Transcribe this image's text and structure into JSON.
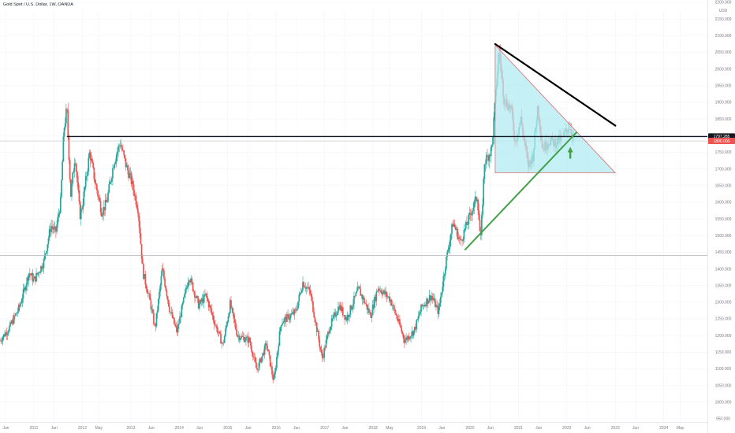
{
  "header": {
    "title": "Gold Spot / U.S. Dollar, 1W, OANDA"
  },
  "axis": {
    "currency": "USD",
    "y_ticks": [
      "2200.000",
      "2150.000",
      "2100.000",
      "2050.000",
      "2000.000",
      "1950.000",
      "1900.000",
      "1850.000",
      "1800.000",
      "1750.000",
      "1700.000",
      "1650.000",
      "1600.000",
      "1550.000",
      "1500.000",
      "1450.000",
      "1400.000",
      "1350.000",
      "1300.000",
      "1250.000",
      "1200.000",
      "1150.000",
      "1100.000",
      "1050.000",
      "1000.000",
      "950.000"
    ],
    "x_ticks": [
      {
        "label": "Jun",
        "t": 2010.42
      },
      {
        "label": "2011",
        "t": 2011.0
      },
      {
        "label": "Jun",
        "t": 2011.42
      },
      {
        "label": "2012",
        "t": 2012.0
      },
      {
        "label": "May",
        "t": 2012.34
      },
      {
        "label": "2013",
        "t": 2013.0
      },
      {
        "label": "Jun",
        "t": 2013.42
      },
      {
        "label": "2014",
        "t": 2014.0
      },
      {
        "label": "Jun",
        "t": 2014.42
      },
      {
        "label": "2015",
        "t": 2015.0
      },
      {
        "label": "Jun",
        "t": 2015.42
      },
      {
        "label": "2016",
        "t": 2016.0
      },
      {
        "label": "Jun",
        "t": 2016.42
      },
      {
        "label": "2017",
        "t": 2017.0
      },
      {
        "label": "Jun",
        "t": 2017.42
      },
      {
        "label": "2018",
        "t": 2018.0
      },
      {
        "label": "May",
        "t": 2018.34
      },
      {
        "label": "2019",
        "t": 2019.0
      },
      {
        "label": "Jun",
        "t": 2019.42
      },
      {
        "label": "2020",
        "t": 2020.0
      },
      {
        "label": "Jun",
        "t": 2020.42
      },
      {
        "label": "2021",
        "t": 2021.0
      },
      {
        "label": "Jun",
        "t": 2021.42
      },
      {
        "label": "2022",
        "t": 2022.0
      },
      {
        "label": "Jun",
        "t": 2022.42
      },
      {
        "label": "2023",
        "t": 2023.0
      },
      {
        "label": "Jun",
        "t": 2023.42
      },
      {
        "label": "2024",
        "t": 2024.0
      },
      {
        "label": "May",
        "t": 2024.34
      }
    ]
  },
  "price_tags": [
    {
      "label": "1797.285",
      "price": 1797.285,
      "bg": "#131722",
      "fg": "#ffffff"
    },
    {
      "label": "1800.000",
      "price": 1784.0,
      "bg": "#ef5350",
      "fg": "#ffffff"
    }
  ],
  "colors": {
    "up": "#26a69a",
    "down": "#ef5350",
    "grid": "#f0f3fa",
    "resistance": "#131722",
    "triangle_fill": "#b2ebf2",
    "triangle_edge": "#ef5350",
    "upper_trend": "#000000",
    "rising_trend": "#43a047",
    "arrow": "#43a047",
    "level": "#b0b4bc"
  },
  "drawings": {
    "resistance_price": 1797.285,
    "resistance_start_t": 2011.68,
    "support_level_price": 1440,
    "triangle": [
      {
        "t": 2020.52,
        "price": 2072
      },
      {
        "t": 2020.52,
        "price": 1688
      },
      {
        "t": 2023.0,
        "price": 1688
      }
    ],
    "upper_trendline": [
      {
        "t": 2020.52,
        "price": 2075
      },
      {
        "t": 2023.0,
        "price": 1830
      }
    ],
    "rising_trendline": [
      {
        "t": 2019.9,
        "price": 1458
      },
      {
        "t": 2022.2,
        "price": 1810
      }
    ],
    "arrow": {
      "t": 2022.07,
      "price": 1745
    }
  },
  "chart_data": {
    "type": "candlestick",
    "title": "Gold Spot / U.S. Dollar, 1W, OANDA",
    "ylabel": "USD",
    "ylim": [
      940,
      2210
    ],
    "xlim": [
      2010.3,
      2024.9
    ],
    "anchors": [
      [
        2010.3,
        1185
      ],
      [
        2010.5,
        1225
      ],
      [
        2010.7,
        1285
      ],
      [
        2010.9,
        1390
      ],
      [
        2011.0,
        1365
      ],
      [
        2011.2,
        1420
      ],
      [
        2011.35,
        1530
      ],
      [
        2011.45,
        1510
      ],
      [
        2011.55,
        1600
      ],
      [
        2011.62,
        1820
      ],
      [
        2011.68,
        1880
      ],
      [
        2011.76,
        1620
      ],
      [
        2011.85,
        1745
      ],
      [
        2011.95,
        1560
      ],
      [
        2012.0,
        1590
      ],
      [
        2012.15,
        1750
      ],
      [
        2012.25,
        1670
      ],
      [
        2012.4,
        1570
      ],
      [
        2012.5,
        1600
      ],
      [
        2012.65,
        1720
      ],
      [
        2012.78,
        1780
      ],
      [
        2012.9,
        1710
      ],
      [
        2013.0,
        1670
      ],
      [
        2013.15,
        1580
      ],
      [
        2013.25,
        1390
      ],
      [
        2013.4,
        1300
      ],
      [
        2013.5,
        1220
      ],
      [
        2013.65,
        1400
      ],
      [
        2013.8,
        1280
      ],
      [
        2013.95,
        1210
      ],
      [
        2014.2,
        1380
      ],
      [
        2014.4,
        1290
      ],
      [
        2014.55,
        1320
      ],
      [
        2014.75,
        1230
      ],
      [
        2014.9,
        1170
      ],
      [
        2015.05,
        1295
      ],
      [
        2015.2,
        1200
      ],
      [
        2015.45,
        1185
      ],
      [
        2015.6,
        1095
      ],
      [
        2015.8,
        1175
      ],
      [
        2015.95,
        1060
      ],
      [
        2016.1,
        1240
      ],
      [
        2016.4,
        1270
      ],
      [
        2016.55,
        1360
      ],
      [
        2016.7,
        1330
      ],
      [
        2016.95,
        1130
      ],
      [
        2017.1,
        1225
      ],
      [
        2017.3,
        1290
      ],
      [
        2017.45,
        1250
      ],
      [
        2017.7,
        1340
      ],
      [
        2017.95,
        1260
      ],
      [
        2018.1,
        1345
      ],
      [
        2018.35,
        1310
      ],
      [
        2018.55,
        1230
      ],
      [
        2018.65,
        1185
      ],
      [
        2018.85,
        1215
      ],
      [
        2019.0,
        1285
      ],
      [
        2019.2,
        1320
      ],
      [
        2019.35,
        1270
      ],
      [
        2019.5,
        1420
      ],
      [
        2019.65,
        1540
      ],
      [
        2019.8,
        1480
      ],
      [
        2020.0,
        1560
      ],
      [
        2020.15,
        1620
      ],
      [
        2020.22,
        1480
      ],
      [
        2020.3,
        1720
      ],
      [
        2020.45,
        1760
      ],
      [
        2020.55,
        1960
      ],
      [
        2020.6,
        2060
      ],
      [
        2020.7,
        1910
      ],
      [
        2020.85,
        1880
      ],
      [
        2020.93,
        1780
      ],
      [
        2021.05,
        1850
      ],
      [
        2021.2,
        1710
      ],
      [
        2021.3,
        1740
      ],
      [
        2021.4,
        1890
      ],
      [
        2021.5,
        1760
      ],
      [
        2021.62,
        1785
      ],
      [
        2021.75,
        1780
      ],
      [
        2021.9,
        1790
      ],
      [
        2022.05,
        1830
      ],
      [
        2022.15,
        1790
      ]
    ]
  }
}
